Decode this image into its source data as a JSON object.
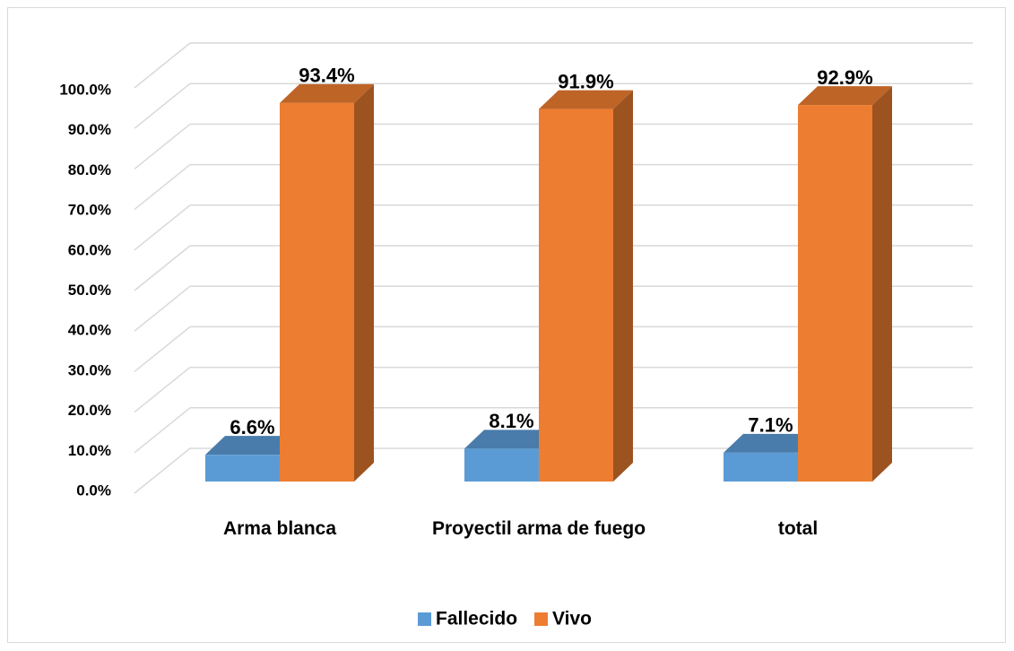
{
  "chart_data": {
    "type": "bar3d",
    "categories": [
      "Arma blanca",
      "Proyectil arma de fuego",
      "total"
    ],
    "series": [
      {
        "name": "Fallecido",
        "color": "#5b9bd5",
        "values": [
          6.6,
          8.1,
          7.1
        ],
        "value_labels": [
          "6.6%",
          "8.1%",
          "7.1%"
        ]
      },
      {
        "name": "Vivo",
        "color": "#ed7d31",
        "values": [
          93.4,
          91.9,
          92.9
        ],
        "value_labels": [
          "93.4%",
          "91.9%",
          "92.9%"
        ]
      }
    ],
    "ylim": [
      0,
      100
    ],
    "yticks": [
      {
        "value": 0,
        "label": "0.0%"
      },
      {
        "value": 10,
        "label": "10.0%"
      },
      {
        "value": 20,
        "label": "20.0%"
      },
      {
        "value": 30,
        "label": "30.0%"
      },
      {
        "value": 40,
        "label": "40.0%"
      },
      {
        "value": 50,
        "label": "50.0%"
      },
      {
        "value": 60,
        "label": "60.0%"
      },
      {
        "value": 70,
        "label": "70.0%"
      },
      {
        "value": 80,
        "label": "80.0%"
      },
      {
        "value": 90,
        "label": "90.0%"
      },
      {
        "value": 100,
        "label": "100.0%"
      }
    ],
    "grid": true,
    "legend": "bottom"
  }
}
